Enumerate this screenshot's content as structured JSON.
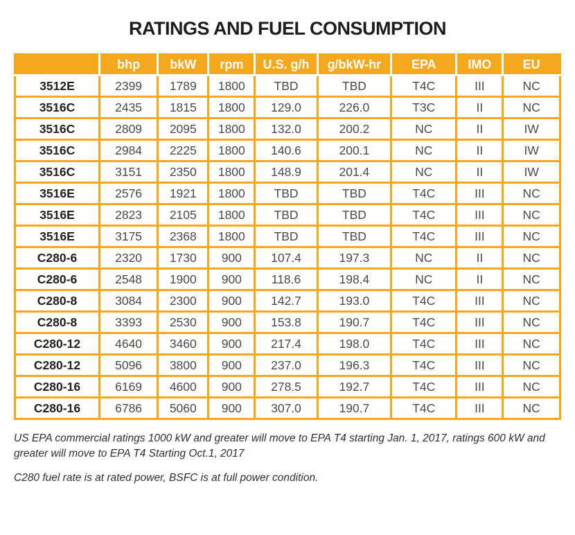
{
  "title": "RATINGS AND FUEL CONSUMPTION",
  "colors": {
    "accent": "#F5A81C",
    "header_text": "#FFFFFF",
    "model_text": "#231F20",
    "value_text": "#4A4A4C"
  },
  "table": {
    "columns": [
      "",
      "bhp",
      "bkW",
      "rpm",
      "U.S. g/h",
      "g/bkW-hr",
      "EPA",
      "IMO",
      "EU"
    ],
    "rows": [
      [
        "3512E",
        "2399",
        "1789",
        "1800",
        "TBD",
        "TBD",
        "T4C",
        "III",
        "NC"
      ],
      [
        "3516C",
        "2435",
        "1815",
        "1800",
        "129.0",
        "226.0",
        "T3C",
        "II",
        "NC"
      ],
      [
        "3516C",
        "2809",
        "2095",
        "1800",
        "132.0",
        "200.2",
        "NC",
        "II",
        "IW"
      ],
      [
        "3516C",
        "2984",
        "2225",
        "1800",
        "140.6",
        "200.1",
        "NC",
        "II",
        "IW"
      ],
      [
        "3516C",
        "3151",
        "2350",
        "1800",
        "148.9",
        "201.4",
        "NC",
        "II",
        "IW"
      ],
      [
        "3516E",
        "2576",
        "1921",
        "1800",
        "TBD",
        "TBD",
        "T4C",
        "III",
        "NC"
      ],
      [
        "3516E",
        "2823",
        "2105",
        "1800",
        "TBD",
        "TBD",
        "T4C",
        "III",
        "NC"
      ],
      [
        "3516E",
        "3175",
        "2368",
        "1800",
        "TBD",
        "TBD",
        "T4C",
        "III",
        "NC"
      ],
      [
        "C280-6",
        "2320",
        "1730",
        "900",
        "107.4",
        "197.3",
        "NC",
        "II",
        "NC"
      ],
      [
        "C280-6",
        "2548",
        "1900",
        "900",
        "118.6",
        "198.4",
        "NC",
        "II",
        "NC"
      ],
      [
        "C280-8",
        "3084",
        "2300",
        "900",
        "142.7",
        "193.0",
        "T4C",
        "III",
        "NC"
      ],
      [
        "C280-8",
        "3393",
        "2530",
        "900",
        "153.8",
        "190.7",
        "T4C",
        "III",
        "NC"
      ],
      [
        "C280-12",
        "4640",
        "3460",
        "900",
        "217.4",
        "198.0",
        "T4C",
        "III",
        "NC"
      ],
      [
        "C280-12",
        "5096",
        "3800",
        "900",
        "237.0",
        "196.3",
        "T4C",
        "III",
        "NC"
      ],
      [
        "C280-16",
        "6169",
        "4600",
        "900",
        "278.5",
        "192.7",
        "T4C",
        "III",
        "NC"
      ],
      [
        "C280-16",
        "6786",
        "5060",
        "900",
        "307.0",
        "190.7",
        "T4C",
        "III",
        "NC"
      ]
    ]
  },
  "footnotes": [
    "US EPA commercial ratings 1000 kW and greater will move to EPA T4 starting Jan. 1, 2017, ratings 600 kW and greater will move to EPA T4 Starting Oct.1, 2017",
    "C280 fuel rate is at rated power, BSFC is at full power condition."
  ]
}
